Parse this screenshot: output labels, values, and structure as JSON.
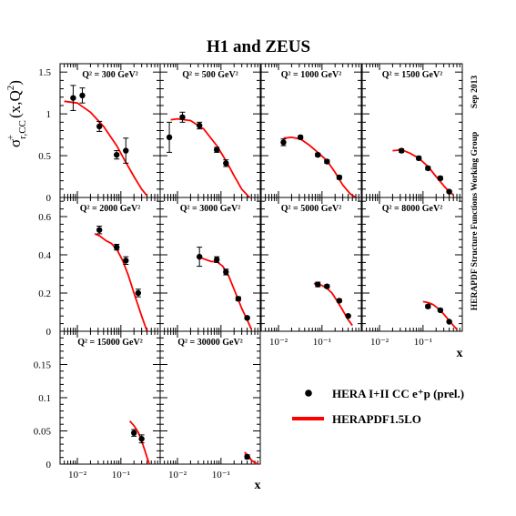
{
  "title": "H1 and ZEUS",
  "y_label": "σ⁺r,CC(x,Q²)",
  "x_axis_label": "x",
  "side_notes": {
    "date": "Sep 2013",
    "group": "HERAPDF Structure Functions Working Group"
  },
  "legend": {
    "data_label": "HERA I+II CC e⁺p (prel.)",
    "fit_label": "HERAPDF1.5LO"
  },
  "colors": {
    "fit": "#ff0000",
    "data": "#000000"
  },
  "rows": [
    {
      "ylim": [
        0,
        1.6
      ],
      "yticks": [
        {
          "v": 0,
          "label": "0"
        },
        {
          "v": 0.5,
          "label": "0.5"
        },
        {
          "v": 1,
          "label": "1"
        },
        {
          "v": 1.5,
          "label": "1.5"
        }
      ]
    },
    {
      "ylim": [
        0,
        0.7
      ],
      "yticks": [
        {
          "v": 0,
          "label": "0"
        },
        {
          "v": 0.2,
          "label": "0.2"
        },
        {
          "v": 0.4,
          "label": "0.4"
        },
        {
          "v": 0.6,
          "label": "0.6"
        }
      ]
    },
    {
      "ylim": [
        0,
        0.2
      ],
      "yticks": [
        {
          "v": 0,
          "label": "0"
        },
        {
          "v": 0.05,
          "label": "0.05"
        },
        {
          "v": 0.1,
          "label": "0.1"
        },
        {
          "v": 0.15,
          "label": "0.15"
        }
      ]
    }
  ],
  "x_tick_labels": [
    "10⁻²",
    "10⁻¹",
    "1"
  ],
  "chart_data": {
    "type": "scatter",
    "x_scale": "log",
    "xlim": [
      0.004,
      0.8
    ],
    "panels": [
      {
        "label": "Q² = 300 GeV²",
        "row": 0,
        "col": 0,
        "points": [
          {
            "x": 0.008,
            "y": 1.19,
            "err": 0.15
          },
          {
            "x": 0.013,
            "y": 1.22,
            "err": 0.09
          },
          {
            "x": 0.032,
            "y": 0.85,
            "err": 0.06
          },
          {
            "x": 0.08,
            "y": 0.51,
            "err": 0.05
          },
          {
            "x": 0.13,
            "y": 0.56,
            "err": 0.15
          }
        ],
        "curve": {
          "x": [
            0.005,
            0.01,
            0.02,
            0.04,
            0.08,
            0.13,
            0.2,
            0.3,
            0.4
          ],
          "y": [
            1.15,
            1.13,
            1.02,
            0.85,
            0.62,
            0.42,
            0.25,
            0.1,
            0.02
          ]
        }
      },
      {
        "label": "Q² = 500 GeV²",
        "row": 0,
        "col": 1,
        "points": [
          {
            "x": 0.0065,
            "y": 0.72,
            "err": 0.18
          },
          {
            "x": 0.013,
            "y": 0.96,
            "err": 0.06
          },
          {
            "x": 0.032,
            "y": 0.86,
            "err": 0.04
          },
          {
            "x": 0.08,
            "y": 0.57,
            "err": 0.03
          },
          {
            "x": 0.13,
            "y": 0.41,
            "err": 0.04
          }
        ],
        "curve": {
          "x": [
            0.007,
            0.01,
            0.02,
            0.04,
            0.08,
            0.13,
            0.2,
            0.3,
            0.45
          ],
          "y": [
            0.93,
            0.94,
            0.92,
            0.82,
            0.62,
            0.44,
            0.26,
            0.1,
            0.0
          ]
        }
      },
      {
        "label": "Q² = 1000 GeV²",
        "row": 0,
        "col": 2,
        "points": [
          {
            "x": 0.013,
            "y": 0.66,
            "err": 0.04
          },
          {
            "x": 0.032,
            "y": 0.72,
            "err": 0.02
          },
          {
            "x": 0.08,
            "y": 0.51,
            "err": 0.02
          },
          {
            "x": 0.13,
            "y": 0.43,
            "err": 0.02
          },
          {
            "x": 0.25,
            "y": 0.24,
            "err": 0.02
          }
        ],
        "curve": {
          "x": [
            0.013,
            0.02,
            0.032,
            0.05,
            0.08,
            0.13,
            0.2,
            0.3,
            0.45,
            0.6
          ],
          "y": [
            0.71,
            0.72,
            0.7,
            0.63,
            0.54,
            0.44,
            0.3,
            0.15,
            0.04,
            0.0
          ]
        }
      },
      {
        "label": "Q² = 1500 GeV²",
        "row": 0,
        "col": 3,
        "points": [
          {
            "x": 0.032,
            "y": 0.56,
            "err": 0.02
          },
          {
            "x": 0.08,
            "y": 0.47,
            "err": 0.02
          },
          {
            "x": 0.13,
            "y": 0.35,
            "err": 0.02
          },
          {
            "x": 0.25,
            "y": 0.23,
            "err": 0.02
          },
          {
            "x": 0.4,
            "y": 0.07,
            "err": 0.01
          }
        ],
        "curve": {
          "x": [
            0.02,
            0.032,
            0.05,
            0.08,
            0.13,
            0.2,
            0.3,
            0.4,
            0.5
          ],
          "y": [
            0.56,
            0.57,
            0.53,
            0.47,
            0.37,
            0.25,
            0.14,
            0.07,
            0.03
          ]
        }
      },
      {
        "label": "Q² = 2000 GeV²",
        "row": 1,
        "col": 0,
        "points": [
          {
            "x": 0.032,
            "y": 0.53,
            "err": 0.02
          },
          {
            "x": 0.08,
            "y": 0.44,
            "err": 0.015
          },
          {
            "x": 0.13,
            "y": 0.37,
            "err": 0.02
          },
          {
            "x": 0.25,
            "y": 0.2,
            "err": 0.02
          }
        ],
        "curve": {
          "x": [
            0.025,
            0.032,
            0.045,
            0.06,
            0.08,
            0.11,
            0.15,
            0.2,
            0.3,
            0.4
          ],
          "y": [
            0.51,
            0.5,
            0.475,
            0.46,
            0.43,
            0.37,
            0.29,
            0.2,
            0.08,
            0.0
          ]
        }
      },
      {
        "label": "Q² = 3000 GeV²",
        "row": 1,
        "col": 1,
        "points": [
          {
            "x": 0.032,
            "y": 0.39,
            "err": 0.05
          },
          {
            "x": 0.08,
            "y": 0.375,
            "err": 0.015
          },
          {
            "x": 0.13,
            "y": 0.31,
            "err": 0.015
          },
          {
            "x": 0.25,
            "y": 0.17,
            "err": 0.01
          },
          {
            "x": 0.4,
            "y": 0.07,
            "err": 0.006
          }
        ],
        "curve": {
          "x": [
            0.03,
            0.045,
            0.06,
            0.08,
            0.11,
            0.15,
            0.2,
            0.3,
            0.4,
            0.5
          ],
          "y": [
            0.39,
            0.375,
            0.365,
            0.365,
            0.34,
            0.29,
            0.22,
            0.12,
            0.06,
            0.01
          ]
        }
      },
      {
        "label": "Q² = 5000 GeV²",
        "row": 1,
        "col": 2,
        "points": [
          {
            "x": 0.08,
            "y": 0.245,
            "err": 0.012
          },
          {
            "x": 0.13,
            "y": 0.235,
            "err": 0.008
          },
          {
            "x": 0.25,
            "y": 0.16,
            "err": 0.007
          },
          {
            "x": 0.4,
            "y": 0.08,
            "err": 0.005
          }
        ],
        "curve": {
          "x": [
            0.065,
            0.08,
            0.1,
            0.13,
            0.17,
            0.22,
            0.3,
            0.4,
            0.5
          ],
          "y": [
            0.25,
            0.245,
            0.24,
            0.225,
            0.2,
            0.16,
            0.11,
            0.06,
            0.03
          ]
        }
      },
      {
        "label": "Q² = 8000 GeV²",
        "row": 1,
        "col": 3,
        "points": [
          {
            "x": 0.13,
            "y": 0.13,
            "err": 0.008
          },
          {
            "x": 0.25,
            "y": 0.11,
            "err": 0.006
          },
          {
            "x": 0.4,
            "y": 0.05,
            "err": 0.004
          }
        ],
        "curve": {
          "x": [
            0.1,
            0.13,
            0.17,
            0.22,
            0.3,
            0.4,
            0.5,
            0.6
          ],
          "y": [
            0.155,
            0.15,
            0.14,
            0.12,
            0.09,
            0.055,
            0.03,
            0.01
          ]
        }
      },
      {
        "label": "Q² = 15000 GeV²",
        "row": 2,
        "col": 0,
        "points": [
          {
            "x": 0.2,
            "y": 0.047,
            "err": 0.005
          },
          {
            "x": 0.3,
            "y": 0.038,
            "err": 0.006
          }
        ],
        "curve": {
          "x": [
            0.16,
            0.2,
            0.25,
            0.3,
            0.35,
            0.4,
            0.45
          ],
          "y": [
            0.065,
            0.058,
            0.048,
            0.035,
            0.022,
            0.01,
            0.0
          ]
        }
      },
      {
        "label": "Q² = 30000 GeV²",
        "row": 2,
        "col": 1,
        "points": [
          {
            "x": 0.4,
            "y": 0.011,
            "err": 0.003
          }
        ],
        "curve": {
          "x": [
            0.35,
            0.4,
            0.45,
            0.5,
            0.6,
            0.7
          ],
          "y": [
            0.018,
            0.014,
            0.01,
            0.006,
            0.002,
            0.0
          ]
        }
      }
    ]
  }
}
